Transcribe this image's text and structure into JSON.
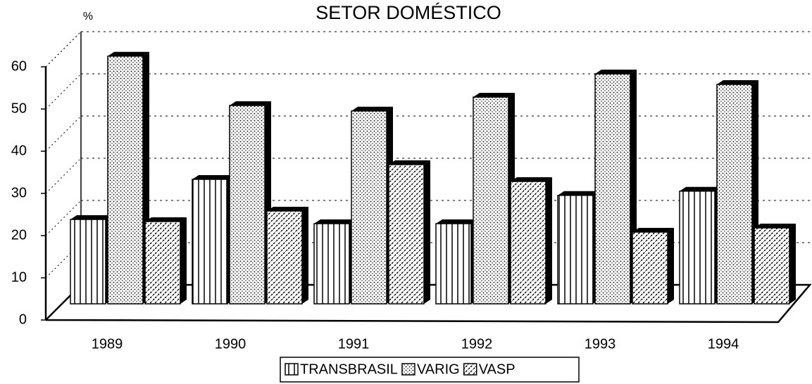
{
  "chart_data": {
    "type": "bar",
    "title": "SETOR  DOMÉSTICO",
    "y_label": "%",
    "categories": [
      "1989",
      "1990",
      "1991",
      "1992",
      "1993",
      "1994"
    ],
    "series": [
      {
        "name": "TRANSBRASIL",
        "color": "#000000",
        "values": [
          20,
          29.5,
          19,
          19,
          25.7,
          26.7
        ]
      },
      {
        "name": "VARIG",
        "color": "#000000",
        "values": [
          58.7,
          47,
          45.7,
          49,
          54.5,
          52
        ]
      },
      {
        "name": "VASP",
        "color": "#000000",
        "values": [
          19.5,
          22,
          33,
          29,
          17,
          18
        ]
      }
    ],
    "ylim": [
      0,
      60
    ],
    "yticks": [
      0,
      10,
      20,
      30,
      40,
      50,
      60
    ],
    "grid": true
  }
}
